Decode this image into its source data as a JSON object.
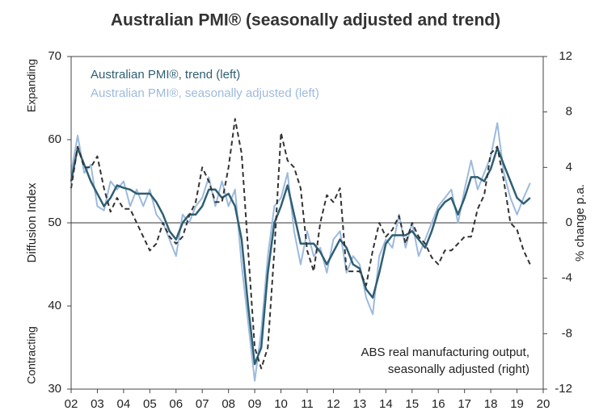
{
  "chart_data": {
    "type": "line",
    "title": "Australian PMI® (seasonally adjusted and trend)",
    "y_label": "Diffusion Index",
    "y2_label": "% change p.a.",
    "expanding_label": "Expanding",
    "contracting_label": "Contracting",
    "annotation": [
      "ABS real manufacturing output,",
      "seasonally adjusted (right)"
    ],
    "hline": 50,
    "x": [
      2002,
      2002.25,
      2002.5,
      2002.75,
      2003,
      2003.25,
      2003.5,
      2003.75,
      2004,
      2004.25,
      2004.5,
      2004.75,
      2005,
      2005.25,
      2005.5,
      2005.75,
      2006,
      2006.25,
      2006.5,
      2006.75,
      2007,
      2007.25,
      2007.5,
      2007.75,
      2008,
      2008.25,
      2008.5,
      2008.75,
      2009,
      2009.25,
      2009.5,
      2009.75,
      2010,
      2010.25,
      2010.5,
      2010.75,
      2011,
      2011.25,
      2011.5,
      2011.75,
      2012,
      2012.25,
      2012.5,
      2012.75,
      2013,
      2013.25,
      2013.5,
      2013.75,
      2014,
      2014.25,
      2014.5,
      2014.75,
      2015,
      2015.25,
      2015.5,
      2015.75,
      2016,
      2016.25,
      2016.5,
      2016.75,
      2017,
      2017.25,
      2017.5,
      2017.75,
      2018,
      2018.25,
      2018.5,
      2018.75,
      2019,
      2019.25,
      2019.5
    ],
    "series": [
      {
        "name": "Australian PMI®, seasonally adjusted (left)",
        "color": "#9dbadd",
        "width": 2,
        "dash": false,
        "values": [
          56,
          60.5,
          56,
          57,
          52,
          51.5,
          55,
          54,
          55,
          52,
          54,
          52,
          54,
          51,
          50,
          48,
          46,
          51,
          50,
          52,
          53,
          55.5,
          52,
          55,
          52,
          54,
          45,
          38,
          31,
          37,
          46,
          52,
          53,
          56,
          49,
          45,
          49,
          46,
          47,
          44,
          48,
          49,
          44,
          46,
          45,
          41,
          39,
          46,
          48,
          47,
          51,
          47,
          50,
          46,
          48,
          50,
          52,
          53,
          54,
          50,
          54,
          57.5,
          54,
          56,
          58,
          62,
          56,
          53,
          51,
          53,
          54.8
        ]
      },
      {
        "name": "Australian PMI®, trend (left)",
        "color": "#2f5f73",
        "width": 2.5,
        "dash": false,
        "values": [
          55,
          59,
          57,
          55,
          53.5,
          52,
          53,
          54.5,
          54.2,
          54,
          53.5,
          53.5,
          53.5,
          52.5,
          51,
          49,
          48,
          50,
          51,
          51,
          52,
          54,
          54,
          53,
          53.5,
          52,
          48,
          40,
          33,
          35,
          44,
          50,
          52,
          54.5,
          51,
          47.5,
          47.5,
          47.5,
          46.5,
          45,
          46.5,
          48,
          47,
          45,
          44.5,
          42,
          41,
          44,
          47.5,
          48.5,
          48.5,
          48.5,
          49,
          48,
          47,
          49,
          51.5,
          52.5,
          53,
          51,
          53,
          55.5,
          55.5,
          55,
          56.5,
          59,
          57,
          55,
          53,
          52.3,
          53
        ]
      },
      {
        "name": "ABS real manufacturing output, seasonally adjusted (right)",
        "color": "#333333",
        "width": 2,
        "dash": true,
        "axis": "y2",
        "values": [
          2.5,
          5.5,
          4,
          4,
          4.8,
          2.5,
          0.8,
          1.8,
          1,
          1,
          0,
          -1,
          -2,
          -1.5,
          0,
          -1,
          -1.5,
          -1,
          0.5,
          1.5,
          4,
          3,
          1.5,
          1.5,
          4,
          7.5,
          5,
          -2,
          -9,
          -10.5,
          -9,
          -2,
          6.5,
          4.5,
          4,
          2.5,
          -2,
          -3.5,
          0,
          2,
          1.5,
          2.5,
          -3.5,
          -3.5,
          -3.5,
          -4.5,
          -2,
          0,
          -1,
          -0.5,
          0.5,
          -1.5,
          0,
          -1,
          -1.5,
          -2.5,
          -3,
          -2,
          -2,
          -1.5,
          -1,
          -1,
          1,
          2,
          5,
          5.5,
          3,
          0,
          -0.5,
          -2,
          -3
        ]
      }
    ],
    "legend_series": [
      1,
      0
    ],
    "xlim": [
      2002,
      2020
    ],
    "xticks": [
      {
        "value": 2002,
        "label": "02"
      },
      {
        "value": 2003,
        "label": "03"
      },
      {
        "value": 2004,
        "label": "04"
      },
      {
        "value": 2005,
        "label": "05"
      },
      {
        "value": 2006,
        "label": "06"
      },
      {
        "value": 2007,
        "label": "07"
      },
      {
        "value": 2008,
        "label": "08"
      },
      {
        "value": 2009,
        "label": "09"
      },
      {
        "value": 2010,
        "label": "10"
      },
      {
        "value": 2011,
        "label": "11"
      },
      {
        "value": 2012,
        "label": "12"
      },
      {
        "value": 2013,
        "label": "13"
      },
      {
        "value": 2014,
        "label": "14"
      },
      {
        "value": 2015,
        "label": "15"
      },
      {
        "value": 2016,
        "label": "16"
      },
      {
        "value": 2017,
        "label": "17"
      },
      {
        "value": 2018,
        "label": "18"
      },
      {
        "value": 2019,
        "label": "19"
      },
      {
        "value": 2020,
        "label": "20"
      }
    ],
    "ylim": [
      30,
      70
    ],
    "yticks": [
      30,
      40,
      50,
      60,
      70
    ],
    "y2lim": [
      -12,
      12
    ],
    "y2ticks": [
      -12,
      -8,
      -4,
      0,
      4,
      8,
      12
    ]
  }
}
